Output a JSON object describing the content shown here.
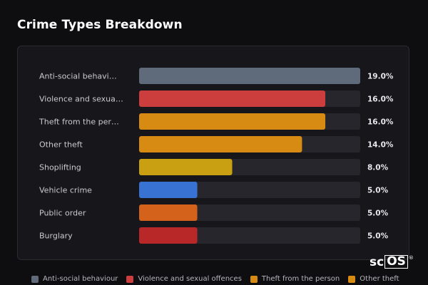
{
  "title": "Crime Types Breakdown",
  "chart_data": {
    "type": "bar",
    "orientation": "horizontal",
    "categories": [
      {
        "label": "Anti-social behavi…",
        "value": 19.0,
        "value_label": "19.0%",
        "color": "#5f6b7a"
      },
      {
        "label": "Violence and sexua…",
        "value": 16.0,
        "value_label": "16.0%",
        "color": "#cc3d3d"
      },
      {
        "label": "Theft from the per…",
        "value": 16.0,
        "value_label": "16.0%",
        "color": "#d88b12"
      },
      {
        "label": "Other theft",
        "value": 14.0,
        "value_label": "14.0%",
        "color": "#d88b12"
      },
      {
        "label": "Shoplifting",
        "value": 8.0,
        "value_label": "8.0%",
        "color": "#c9a012"
      },
      {
        "label": "Vehicle crime",
        "value": 5.0,
        "value_label": "5.0%",
        "color": "#3873d4"
      },
      {
        "label": "Public order",
        "value": 5.0,
        "value_label": "5.0%",
        "color": "#d4621a"
      },
      {
        "label": "Burglary",
        "value": 5.0,
        "value_label": "5.0%",
        "color": "#b82828"
      }
    ],
    "xlim": [
      0,
      19
    ],
    "track_color": "#26262c"
  },
  "legend": [
    {
      "label": "Anti-social behaviour",
      "color": "#5f6b7a"
    },
    {
      "label": "Violence and sexual offences",
      "color": "#cc3d3d"
    },
    {
      "label": "Theft from the person",
      "color": "#d88b12"
    },
    {
      "label": "Other theft",
      "color": "#d88b12"
    }
  ],
  "logo": {
    "prefix": "sc",
    "boxed": "OS",
    "mark": "®"
  }
}
